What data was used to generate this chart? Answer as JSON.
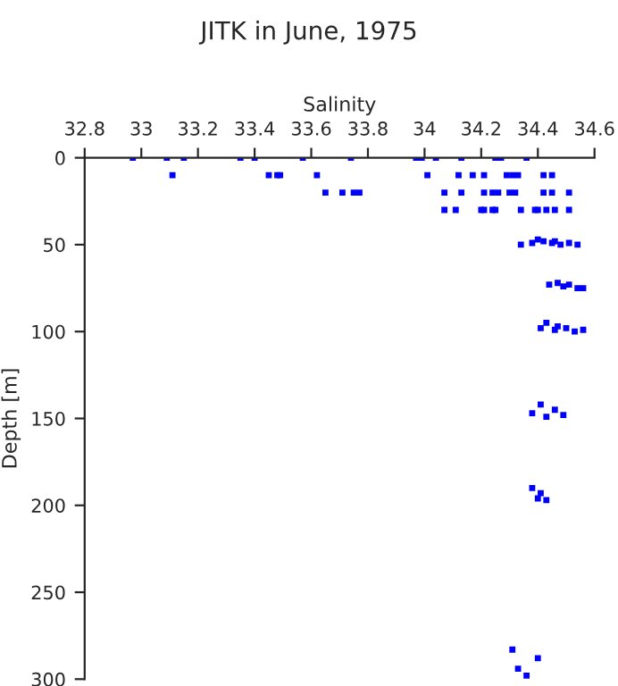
{
  "chart_data": {
    "type": "scatter",
    "title": "JITK in June, 1975",
    "xlabel": "Salinity",
    "ylabel": "Depth [m]",
    "x": [
      32.97,
      33.09,
      33.15,
      33.35,
      33.4,
      33.57,
      33.74,
      33.97,
      33.99,
      34.04,
      34.13,
      34.25,
      34.27,
      34.36,
      33.11,
      33.45,
      33.48,
      33.49,
      33.62,
      34.01,
      34.12,
      34.17,
      34.21,
      34.29,
      34.31,
      34.33,
      34.42,
      34.45,
      33.65,
      33.71,
      33.75,
      33.77,
      34.07,
      34.13,
      34.21,
      34.24,
      34.26,
      34.3,
      34.32,
      34.42,
      34.45,
      34.51,
      34.07,
      34.11,
      34.2,
      34.21,
      34.24,
      34.25,
      34.34,
      34.39,
      34.4,
      34.43,
      34.46,
      34.51,
      34.34,
      34.38,
      34.4,
      34.42,
      34.45,
      34.46,
      34.48,
      34.51,
      34.54,
      34.44,
      34.47,
      34.49,
      34.51,
      34.54,
      34.56,
      34.41,
      34.43,
      34.46,
      34.47,
      34.5,
      34.53,
      34.56,
      34.38,
      34.41,
      34.43,
      34.46,
      34.49,
      34.38,
      34.4,
      34.41,
      34.43,
      34.31,
      34.33,
      34.36,
      34.4
    ],
    "series": [
      {
        "color": "#0000ff",
        "values": [
          0,
          0,
          0,
          0,
          0,
          0,
          0,
          0,
          0,
          0,
          0,
          0,
          0,
          0,
          10,
          10,
          10,
          10,
          10,
          10,
          10,
          10,
          10,
          10,
          10,
          10,
          10,
          10,
          20,
          20,
          20,
          20,
          20,
          20,
          20,
          20,
          20,
          20,
          20,
          20,
          20,
          20,
          30,
          30,
          30,
          30,
          30,
          30,
          30,
          30,
          30,
          30,
          30,
          30,
          50,
          49,
          47,
          48,
          49,
          48,
          50,
          49,
          50,
          73,
          72,
          74,
          73,
          75,
          75,
          98,
          95,
          99,
          97,
          98,
          100,
          99,
          147,
          142,
          149,
          145,
          148,
          190,
          196,
          193,
          197,
          283,
          294,
          298,
          288
        ]
      }
    ],
    "xlim": [
      32.8,
      34.6
    ],
    "xticks": [
      32.8,
      33,
      33.2,
      33.4,
      33.6,
      33.8,
      34,
      34.2,
      34.4,
      34.6
    ],
    "ylim": [
      300,
      0
    ],
    "yticks": [
      0,
      50,
      100,
      150,
      200,
      250,
      300
    ],
    "marker": "square",
    "grid": false,
    "legend": false
  }
}
